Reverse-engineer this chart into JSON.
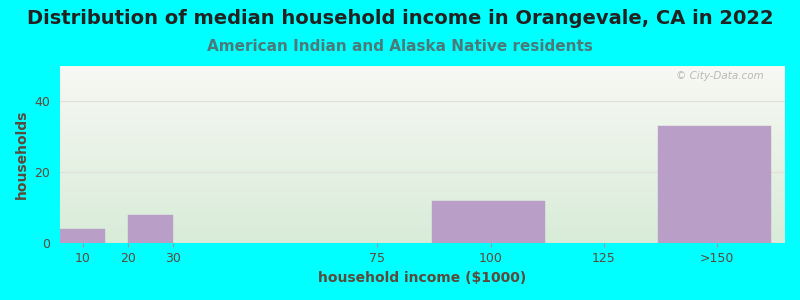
{
  "title": "Distribution of median household income in Orangevale, CA in 2022",
  "subtitle": "American Indian and Alaska Native residents",
  "xlabel": "household income ($1000)",
  "ylabel": "households",
  "background_color": "#00FFFF",
  "plot_bg_top": "#f8f8f4",
  "plot_bg_bottom": "#d8ecd8",
  "bar_color": "#b99fc8",
  "bar_edgecolor": "#b99fc8",
  "categories": [
    "10",
    "20",
    "30",
    "75",
    "100",
    "125",
    ">150"
  ],
  "bar_lefts": [
    5,
    15,
    20,
    87,
    87,
    112,
    137
  ],
  "bar_widths": [
    10,
    5,
    10,
    0,
    25,
    0,
    25
  ],
  "values": [
    4,
    0,
    8,
    0,
    12,
    0,
    33
  ],
  "xtick_positions": [
    10,
    20,
    30,
    75,
    100,
    125,
    150
  ],
  "xtick_labels": [
    "10",
    "20",
    "30",
    "75",
    "100",
    "125",
    ">150"
  ],
  "xlim": [
    5,
    165
  ],
  "yticks": [
    0,
    20,
    40
  ],
  "ylim": [
    0,
    50
  ],
  "title_fontsize": 14,
  "subtitle_fontsize": 11,
  "axis_label_fontsize": 10,
  "tick_fontsize": 9,
  "title_color": "#222222",
  "subtitle_color": "#4a7a7a",
  "axis_label_color": "#5a4a3a",
  "tick_color": "#5a4a3a",
  "watermark_text": "© City-Data.com",
  "grid_color": "#e0e0d8",
  "grid_linewidth": 0.8
}
